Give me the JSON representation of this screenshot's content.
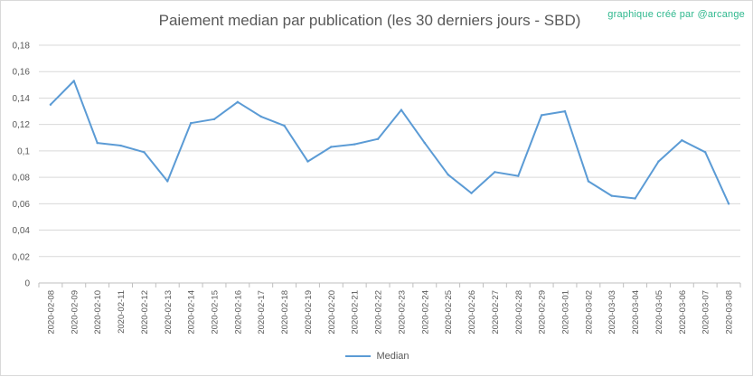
{
  "header": {
    "title": "Paiement median par publication (les 30 derniers jours - SBD)",
    "credit": "graphique créé par @arcange"
  },
  "chart_data": {
    "type": "line",
    "title": "Paiement median par publication (les 30 derniers jours - SBD)",
    "xlabel": "",
    "ylabel": "",
    "ylim": [
      0,
      0.18
    ],
    "yticks": [
      "0",
      "0,02",
      "0,04",
      "0,06",
      "0,08",
      "0,1",
      "0,12",
      "0,14",
      "0,16",
      "0,18"
    ],
    "grid": true,
    "legend_position": "bottom",
    "categories": [
      "2020-02-08",
      "2020-02-09",
      "2020-02-10",
      "2020-02-11",
      "2020-02-12",
      "2020-02-13",
      "2020-02-14",
      "2020-02-15",
      "2020-02-16",
      "2020-02-17",
      "2020-02-18",
      "2020-02-19",
      "2020-02-20",
      "2020-02-21",
      "2020-02-22",
      "2020-02-23",
      "2020-02-24",
      "2020-02-25",
      "2020-02-26",
      "2020-02-27",
      "2020-02-28",
      "2020-02-29",
      "2020-03-01",
      "2020-03-02",
      "2020-03-03",
      "2020-03-04",
      "2020-03-05",
      "2020-03-06",
      "2020-03-07",
      "2020-03-08"
    ],
    "series": [
      {
        "name": "Median",
        "color": "#5b9bd5",
        "values": [
          0.135,
          0.153,
          0.106,
          0.104,
          0.099,
          0.077,
          0.121,
          0.124,
          0.137,
          0.126,
          0.119,
          0.092,
          0.103,
          0.105,
          0.109,
          0.131,
          0.106,
          0.082,
          0.068,
          0.084,
          0.081,
          0.127,
          0.13,
          0.077,
          0.066,
          0.064,
          0.092,
          0.108,
          0.099,
          0.06
        ]
      }
    ]
  }
}
